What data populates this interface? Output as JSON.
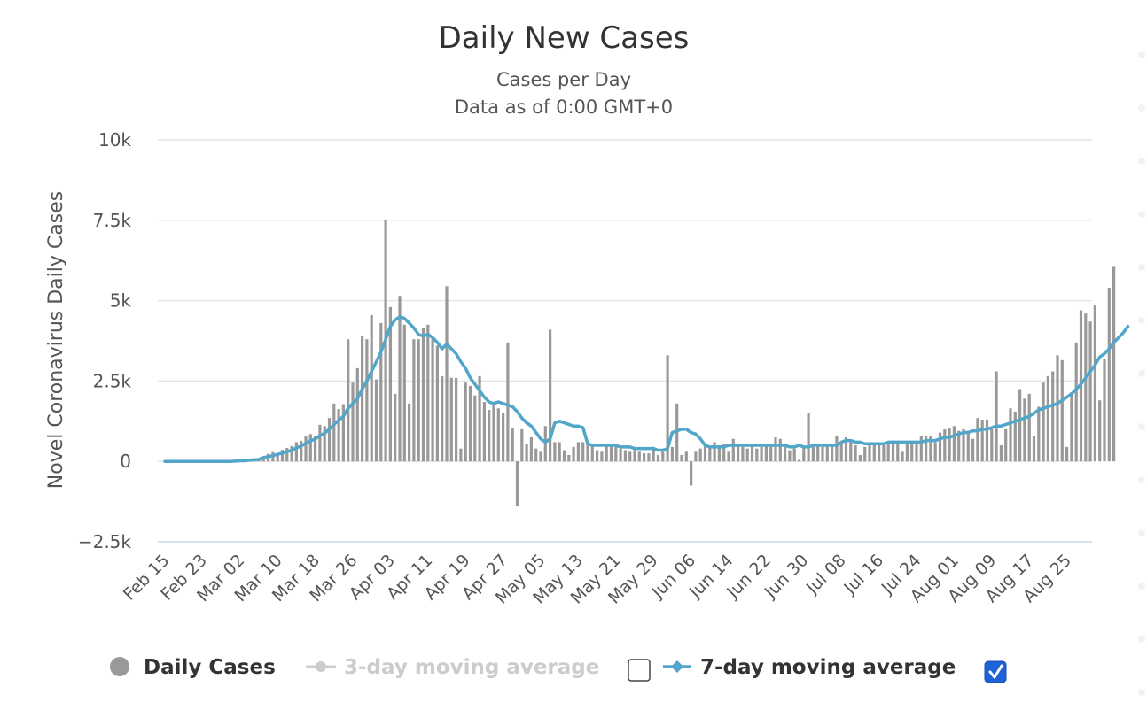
{
  "chart_data": {
    "type": "bar",
    "title": "Daily New Cases",
    "subtitle_line1": "Cases per Day",
    "subtitle_line2": "Data as of 0:00 GMT+0",
    "ylabel": "Novel Coronavirus Daily Cases",
    "xlabel": "",
    "ylim": [
      -2500,
      10000
    ],
    "yticks": [
      {
        "value": 10000,
        "label": "10k"
      },
      {
        "value": 7500,
        "label": "7.5k"
      },
      {
        "value": 5000,
        "label": "5k"
      },
      {
        "value": 2500,
        "label": "2.5k"
      },
      {
        "value": 0,
        "label": "0"
      },
      {
        "value": -2500,
        "label": "−2.5k"
      }
    ],
    "start_date": "2020-02-15",
    "x_tick_labels": [
      "Feb 15",
      "Feb 23",
      "Mar 02",
      "Mar 10",
      "Mar 18",
      "Mar 26",
      "Apr 03",
      "Apr 11",
      "Apr 19",
      "Apr 27",
      "May 05",
      "May 13",
      "May 21",
      "May 29",
      "Jun 06",
      "Jun 14",
      "Jun 22",
      "Jun 30",
      "Jul 08",
      "Jul 16",
      "Jul 24",
      "Aug 01",
      "Aug 09",
      "Aug 17",
      "Aug 25"
    ],
    "grid": true,
    "legend_position": "bottom",
    "colors": {
      "bars": "#999999",
      "ma7": "#51a6c9",
      "disabled": "#cccccc"
    },
    "series": [
      {
        "name": "Daily Cases",
        "type": "bar",
        "values": [
          0,
          0,
          0,
          0,
          0,
          0,
          0,
          0,
          0,
          0,
          0,
          0,
          0,
          0,
          0,
          10,
          20,
          20,
          40,
          50,
          60,
          120,
          240,
          290,
          250,
          360,
          420,
          480,
          600,
          640,
          800,
          850,
          800,
          1140,
          1100,
          1350,
          1800,
          1630,
          1780,
          3800,
          2450,
          2900,
          3900,
          3800,
          4550,
          2550,
          4300,
          7500,
          4800,
          2100,
          5150,
          4250,
          1800,
          3800,
          3800,
          4150,
          4250,
          3800,
          3600,
          2650,
          5450,
          2600,
          2600,
          400,
          2450,
          2350,
          2050,
          2650,
          1850,
          1600,
          1750,
          1650,
          1500,
          3700,
          1050,
          -1400,
          1000,
          550,
          750,
          400,
          300,
          1100,
          4100,
          600,
          600,
          350,
          200,
          450,
          600,
          600,
          550,
          500,
          350,
          300,
          500,
          500,
          450,
          400,
          350,
          300,
          350,
          300,
          250,
          250,
          450,
          200,
          300,
          3300,
          450,
          1800,
          200,
          300,
          -750,
          300,
          400,
          500,
          450,
          600,
          500,
          550,
          300,
          700,
          550,
          450,
          400,
          500,
          400,
          450,
          500,
          550,
          750,
          700,
          450,
          350,
          400,
          50,
          450,
          1500,
          450,
          500,
          450,
          550,
          550,
          800,
          600,
          750,
          600,
          500,
          200,
          450,
          550,
          550,
          550,
          500,
          550,
          650,
          650,
          300,
          550,
          550,
          600,
          800,
          800,
          800,
          600,
          900,
          1000,
          1050,
          1100,
          950,
          1000,
          950,
          700,
          1350,
          1300,
          1300,
          1000,
          2800,
          500,
          1000,
          1650,
          1550,
          2250,
          1950,
          2100,
          800,
          1700,
          2450,
          2650,
          2800,
          3300,
          3150,
          450,
          2150,
          3700,
          4700,
          4600,
          4350,
          4850,
          1900,
          3200,
          5400,
          6050
        ]
      },
      {
        "name": "3-day moving average",
        "type": "line",
        "visible": false
      },
      {
        "name": "7-day moving average",
        "type": "line",
        "visible": true,
        "values": [
          0,
          0,
          0,
          0,
          0,
          0,
          0,
          0,
          0,
          0,
          0,
          0,
          0,
          0,
          0,
          10,
          20,
          20,
          40,
          50,
          60,
          120,
          150,
          180,
          220,
          260,
          300,
          350,
          420,
          480,
          560,
          640,
          700,
          800,
          880,
          1000,
          1150,
          1280,
          1400,
          1650,
          1800,
          1950,
          2250,
          2500,
          2800,
          3100,
          3400,
          3800,
          4200,
          4400,
          4500,
          4450,
          4300,
          4150,
          3950,
          3900,
          3950,
          3850,
          3700,
          3500,
          3650,
          3500,
          3350,
          3100,
          2900,
          2600,
          2400,
          2200,
          2000,
          1850,
          1800,
          1850,
          1800,
          1750,
          1700,
          1550,
          1350,
          1200,
          1100,
          900,
          700,
          600,
          700,
          1200,
          1250,
          1200,
          1150,
          1100,
          1100,
          1050,
          550,
          500,
          500,
          500,
          500,
          500,
          500,
          450,
          450,
          450,
          400,
          400,
          400,
          400,
          400,
          350,
          350,
          400,
          900,
          950,
          1000,
          1000,
          900,
          850,
          700,
          500,
          450,
          450,
          450,
          450,
          500,
          500,
          500,
          500,
          500,
          500,
          500,
          500,
          500,
          500,
          500,
          500,
          500,
          450,
          450,
          500,
          450,
          450,
          500,
          500,
          500,
          500,
          500,
          500,
          600,
          650,
          650,
          600,
          600,
          550,
          550,
          550,
          550,
          550,
          600,
          600,
          600,
          600,
          600,
          600,
          600,
          600,
          650,
          650,
          650,
          700,
          750,
          750,
          800,
          850,
          900,
          900,
          950,
          950,
          1000,
          1000,
          1050,
          1100,
          1100,
          1150,
          1200,
          1250,
          1300,
          1350,
          1400,
          1500,
          1600,
          1650,
          1700,
          1750,
          1800,
          1900,
          2000,
          2100,
          2250,
          2400,
          2600,
          2800,
          3000,
          3250,
          3350,
          3500,
          3700,
          3850,
          4000,
          4200
        ]
      }
    ]
  },
  "legend": {
    "items": [
      {
        "label": "Daily Cases"
      },
      {
        "label": "3-day moving average"
      },
      {
        "label": "7-day moving average"
      }
    ]
  }
}
